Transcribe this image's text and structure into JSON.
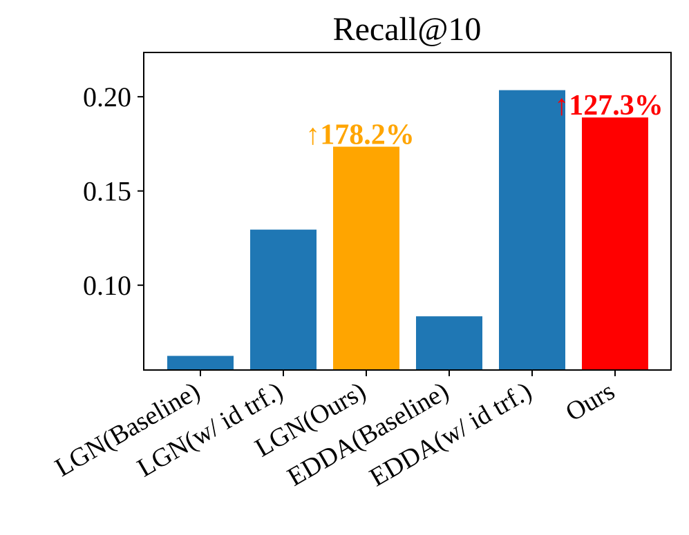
{
  "chart_data": {
    "type": "bar",
    "title": "Recall@10",
    "xlabel": "",
    "ylabel": "",
    "categories": [
      "LGN(Baseline)",
      "LGN(w/ id trf.)",
      "LGN(Ours)",
      "EDDA(Baseline)",
      "EDDA(w/ id trf.)",
      "Ours"
    ],
    "values": [
      0.0625,
      0.1295,
      0.1735,
      0.0835,
      0.2035,
      0.189
    ],
    "colors": [
      "#1f77b4",
      "#1f77b4",
      "#ffa500",
      "#1f77b4",
      "#1f77b4",
      "#ff0000"
    ],
    "ylim": [
      0.055,
      0.2235
    ],
    "yticks": [
      0.1,
      0.15,
      0.2
    ],
    "ytick_labels": [
      "0.10",
      "0.15",
      "0.20"
    ],
    "grid": false,
    "annotations": [
      {
        "text": "↑178.2%",
        "category_index": 2,
        "color": "#ffa500"
      },
      {
        "text": "↑127.3%",
        "category_index": 5,
        "color": "#ff0000"
      }
    ]
  }
}
